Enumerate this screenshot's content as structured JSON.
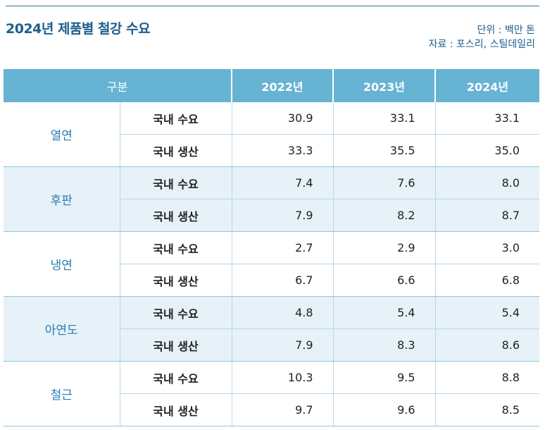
{
  "title": "2024년 제품별 철강 수요",
  "unit": "단위 : 백만 톤",
  "source": "자료 : 포스리, 스틸데일리",
  "headers": [
    "구분",
    "2022년",
    "2023년",
    "2024년"
  ],
  "groups": [
    {
      "category": "열연",
      "rows": [
        {
          "label": "국내 수요",
          "values": [
            "30.9",
            "33.1",
            "33.1"
          ]
        },
        {
          "label": "국내 생산",
          "values": [
            "33.3",
            "35.5",
            "35.0"
          ]
        }
      ]
    },
    {
      "category": "후판",
      "rows": [
        {
          "label": "국내 수요",
          "values": [
            "7.4",
            "7.6",
            "8.0"
          ]
        },
        {
          "label": "국내 생산",
          "values": [
            "7.9",
            "8.2",
            "8.7"
          ]
        }
      ]
    },
    {
      "category": "냉연",
      "rows": [
        {
          "label": "국내 수요",
          "values": [
            "2.7",
            "2.9",
            "3.0"
          ]
        },
        {
          "label": "국내 생산",
          "values": [
            "6.7",
            "6.6",
            "6.8"
          ]
        }
      ]
    },
    {
      "category": "아연도",
      "rows": [
        {
          "label": "국내 수요",
          "values": [
            "4.8",
            "5.4",
            "5.4"
          ]
        },
        {
          "label": "국내 생산",
          "values": [
            "7.9",
            "8.3",
            "8.6"
          ]
        }
      ]
    },
    {
      "category": "철근",
      "rows": [
        {
          "label": "국내 수요",
          "values": [
            "10.3",
            "9.5",
            "8.8"
          ]
        },
        {
          "label": "국내 생산",
          "values": [
            "9.7",
            "9.6",
            "8.5"
          ]
        }
      ]
    }
  ]
}
